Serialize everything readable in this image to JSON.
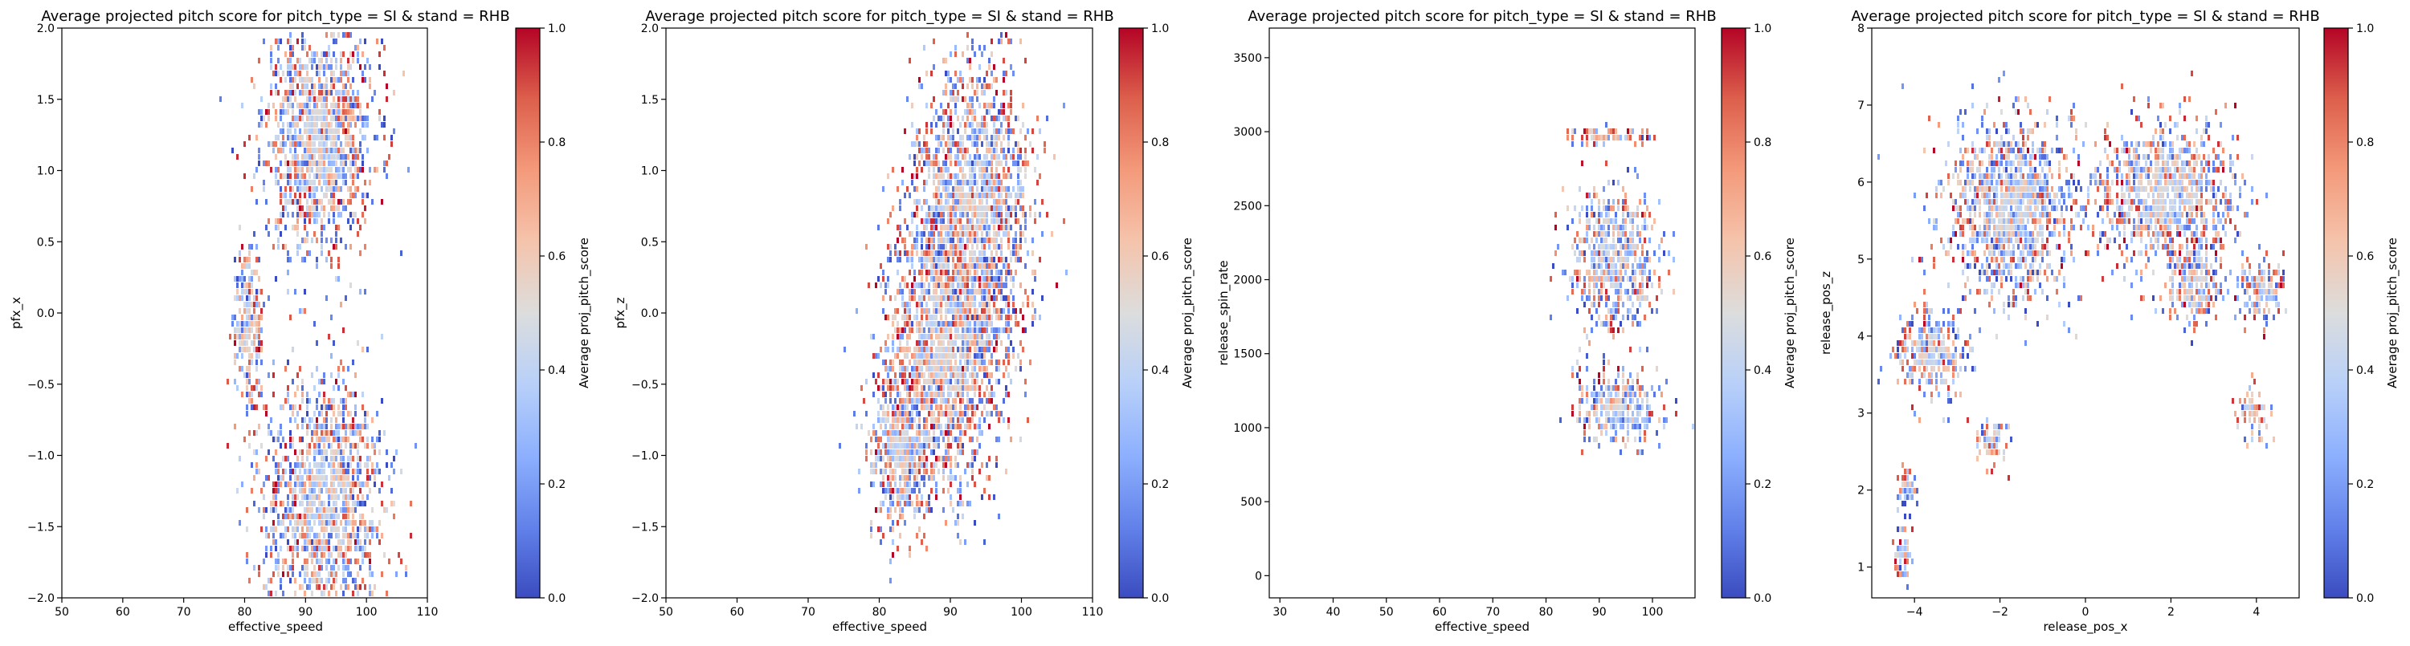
{
  "colors": {
    "colormap": [
      "#3b4cc0",
      "#6282ea",
      "#8db0fe",
      "#b8d0f9",
      "#dcdddd",
      "#f5c4ac",
      "#f49a7b",
      "#dd604c",
      "#b40426"
    ],
    "frame": "#000000",
    "background": "#ffffff"
  },
  "chart_data": [
    {
      "type": "heatmap",
      "title": "Average projected pitch score for pitch_type = SI & stand = RHB",
      "xlabel": "effective_speed",
      "ylabel": "pfx_x",
      "xlim": [
        50,
        110
      ],
      "ylim": [
        -2.0,
        2.0
      ],
      "xticks": [
        50,
        60,
        70,
        80,
        90,
        100,
        110
      ],
      "xtick_labels": [
        "50",
        "60",
        "70",
        "80",
        "90",
        "100",
        "110"
      ],
      "yticks": [
        -2.0,
        -1.5,
        -1.0,
        -0.5,
        0.0,
        0.5,
        1.0,
        1.5,
        2.0
      ],
      "ytick_labels": [
        "−2.0",
        "−1.5",
        "−1.0",
        "−0.5",
        "0.0",
        "0.5",
        "1.0",
        "1.5",
        "2.0"
      ],
      "colorbar": {
        "label": "Average proj_pitch_score",
        "range": [
          0.0,
          1.0
        ],
        "ticks": [
          0.0,
          0.2,
          0.4,
          0.6,
          0.8,
          1.0
        ],
        "tick_labels": [
          "0.0",
          "0.2",
          "0.4",
          "0.6",
          "0.8",
          "1.0"
        ]
      },
      "clusters": [
        {
          "x": 92,
          "y": 1.25,
          "sx": 4.5,
          "sy": 0.42,
          "value": 0.48
        },
        {
          "x": 93,
          "y": -1.3,
          "sx": 4.8,
          "sy": 0.42,
          "value": 0.46
        },
        {
          "x": 80.5,
          "y": -0.1,
          "sx": 1.2,
          "sy": 0.3,
          "value": 0.5
        }
      ]
    },
    {
      "type": "heatmap",
      "title": "Average projected pitch score for pitch_type = SI & stand = RHB",
      "xlabel": "effective_speed",
      "ylabel": "pfx_z",
      "xlim": [
        50,
        110
      ],
      "ylim": [
        -2.0,
        2.0
      ],
      "xticks": [
        50,
        60,
        70,
        80,
        90,
        100,
        110
      ],
      "xtick_labels": [
        "50",
        "60",
        "70",
        "80",
        "90",
        "100",
        "110"
      ],
      "yticks": [
        -2.0,
        -1.5,
        -1.0,
        -0.5,
        0.0,
        0.5,
        1.0,
        1.5,
        2.0
      ],
      "ytick_labels": [
        "−2.0",
        "−1.5",
        "−1.0",
        "−0.5",
        "0.0",
        "0.5",
        "1.0",
        "1.5",
        "2.0"
      ],
      "colorbar": {
        "label": "Average proj_pitch_score",
        "range": [
          0.0,
          1.0
        ],
        "ticks": [
          0.0,
          0.2,
          0.4,
          0.6,
          0.8,
          1.0
        ],
        "tick_labels": [
          "0.0",
          "0.2",
          "0.4",
          "0.6",
          "0.8",
          "1.0"
        ]
      },
      "clusters": [
        {
          "x": 93,
          "y": 0.7,
          "sx": 4.2,
          "sy": 0.55,
          "value": 0.47
        },
        {
          "x": 89,
          "y": -0.2,
          "sx": 4.0,
          "sy": 0.5,
          "value": 0.5
        },
        {
          "x": 83,
          "y": -0.95,
          "sx": 2.2,
          "sy": 0.3,
          "value": 0.52
        }
      ]
    },
    {
      "type": "heatmap",
      "title": "Average projected pitch score for pitch_type = SI & stand = RHB",
      "xlabel": "effective_speed",
      "ylabel": "release_spin_rate",
      "xlim": [
        28,
        108
      ],
      "ylim": [
        -150,
        3700
      ],
      "xticks": [
        30,
        40,
        50,
        60,
        70,
        80,
        90,
        100
      ],
      "xtick_labels": [
        "30",
        "40",
        "50",
        "60",
        "70",
        "80",
        "90",
        "100"
      ],
      "yticks": [
        0,
        500,
        1000,
        1500,
        2000,
        2500,
        3000,
        3500
      ],
      "ytick_labels": [
        "0",
        "500",
        "1000",
        "1500",
        "2000",
        "2500",
        "3000",
        "3500"
      ],
      "colorbar": {
        "label": "Average proj_pitch_score",
        "range": [
          0.0,
          1.0
        ],
        "ticks": [
          0.0,
          0.2,
          0.4,
          0.6,
          0.8,
          1.0
        ],
        "tick_labels": [
          "0.0",
          "0.2",
          "0.4",
          "0.6",
          "0.8",
          "1.0"
        ]
      },
      "clusters": [
        {
          "x": 92.5,
          "y": 2150,
          "sx": 4.0,
          "sy": 230,
          "value": 0.45
        },
        {
          "x": 92,
          "y": 2990,
          "sx": 4.5,
          "sy": 25,
          "value": 0.6
        },
        {
          "x": 93,
          "y": 1150,
          "sx": 4.0,
          "sy": 130,
          "value": 0.45
        }
      ]
    },
    {
      "type": "heatmap",
      "title": "Average projected pitch score for pitch_type = SI & stand = RHB",
      "xlabel": "release_pos_x",
      "ylabel": "release_pos_z",
      "xlim": [
        -5.0,
        5.0
      ],
      "ylim": [
        0.6,
        8.0
      ],
      "xticks": [
        -4,
        -2,
        0,
        2,
        4
      ],
      "xtick_labels": [
        "−4",
        "−2",
        "0",
        "2",
        "4"
      ],
      "yticks": [
        1,
        2,
        3,
        4,
        5,
        6,
        7,
        8
      ],
      "ytick_labels": [
        "1",
        "2",
        "3",
        "4",
        "5",
        "6",
        "7",
        "8"
      ],
      "colorbar": {
        "label": "Average proj_pitch_score",
        "range": [
          0.0,
          1.0
        ],
        "ticks": [
          0.0,
          0.2,
          0.4,
          0.6,
          0.8,
          1.0
        ],
        "tick_labels": [
          "0.0",
          "0.2",
          "0.4",
          "0.6",
          "0.8",
          "1.0"
        ]
      },
      "clusters": [
        {
          "x": -1.8,
          "y": 5.7,
          "sx": 0.75,
          "sy": 0.6,
          "value": 0.45
        },
        {
          "x": 1.8,
          "y": 5.9,
          "sx": 0.85,
          "sy": 0.45,
          "value": 0.47
        },
        {
          "x": -3.6,
          "y": 3.8,
          "sx": 0.4,
          "sy": 0.3,
          "value": 0.45
        },
        {
          "x": -2.2,
          "y": 2.7,
          "sx": 0.2,
          "sy": 0.15,
          "value": 0.5
        },
        {
          "x": -4.2,
          "y": 2.05,
          "sx": 0.12,
          "sy": 0.15,
          "value": 0.42
        },
        {
          "x": -4.3,
          "y": 1.2,
          "sx": 0.12,
          "sy": 0.15,
          "value": 0.45
        },
        {
          "x": 3.9,
          "y": 3.0,
          "sx": 0.18,
          "sy": 0.15,
          "value": 0.5
        },
        {
          "x": 4.1,
          "y": 4.6,
          "sx": 0.25,
          "sy": 0.2,
          "value": 0.45
        },
        {
          "x": 2.5,
          "y": 4.7,
          "sx": 0.35,
          "sy": 0.25,
          "value": 0.45
        }
      ]
    }
  ]
}
